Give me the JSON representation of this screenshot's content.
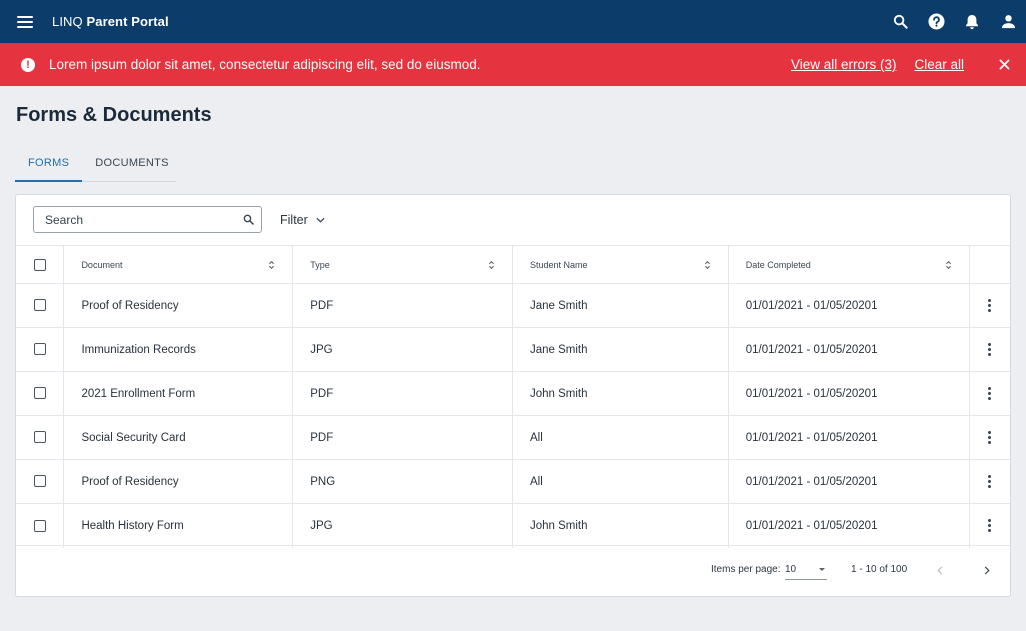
{
  "header": {
    "brand_prefix": "LINQ",
    "brand_name": "Parent Portal",
    "icons": [
      "menu-icon",
      "search-icon",
      "help-icon",
      "bell-icon",
      "account-icon"
    ]
  },
  "banner": {
    "message": "Lorem ipsum dolor sit amet, consectetur adipiscing elit, sed do eiusmod.",
    "view_all": "View all errors (3)",
    "clear_all": "Clear all",
    "icon": "alert-icon",
    "color": "#e5333f"
  },
  "page": {
    "title": "Forms & Documents",
    "tabs": [
      {
        "label": "FORMS",
        "active": true
      },
      {
        "label": "DOCUMENTS",
        "active": false
      }
    ]
  },
  "toolbar": {
    "search_placeholder": "Search",
    "filter_label": "Filter"
  },
  "table": {
    "columns": [
      "Document",
      "Type",
      "Student Name",
      "Date Completed"
    ],
    "rows": [
      {
        "document": "Proof of Residency",
        "type": "PDF",
        "student": "Jane Smith",
        "date": "01/01/2021 - 01/05/20201"
      },
      {
        "document": "Immunization Records",
        "type": "JPG",
        "student": "Jane Smith",
        "date": "01/01/2021 - 01/05/20201"
      },
      {
        "document": "2021 Enrollment Form",
        "type": "PDF",
        "student": "John Smith",
        "date": "01/01/2021 - 01/05/20201"
      },
      {
        "document": "Social Security Card",
        "type": "PDF",
        "student": "All",
        "date": "01/01/2021 - 01/05/20201"
      },
      {
        "document": "Proof of Residency",
        "type": "PNG",
        "student": "All",
        "date": "01/01/2021 - 01/05/20201"
      },
      {
        "document": "Health History Form",
        "type": "JPG",
        "student": "John Smith",
        "date": "01/01/2021 - 01/05/20201"
      }
    ]
  },
  "pagination": {
    "items_per_page_label": "Items per page:",
    "items_per_page": "10",
    "range": "1 - 10 of 100"
  },
  "colors": {
    "header_bg": "#0b3c6a",
    "accent": "#1f6fb2",
    "page_bg": "#eceef1"
  }
}
